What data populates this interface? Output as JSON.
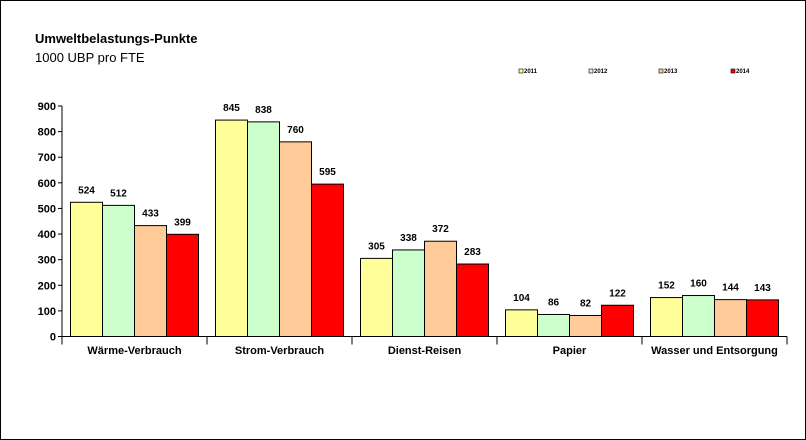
{
  "chart_data": {
    "type": "bar",
    "title": "Umweltbelastungs-Punkte",
    "subtitle": "1000 UBP pro FTE",
    "categories": [
      "Wärme-Verbrauch",
      "Strom-Verbrauch",
      "Dienst-Reisen",
      "Papier",
      "Wasser und Entsorgung"
    ],
    "series": [
      {
        "name": "2011",
        "color": "#ffff99",
        "values": [
          524,
          845,
          305,
          104,
          152
        ]
      },
      {
        "name": "2012",
        "color": "#ccffcc",
        "values": [
          512,
          838,
          338,
          86,
          160
        ]
      },
      {
        "name": "2013",
        "color": "#ffcc99",
        "values": [
          433,
          760,
          372,
          82,
          144
        ]
      },
      {
        "name": "2014",
        "color": "#ff0000",
        "values": [
          399,
          595,
          283,
          122,
          143
        ]
      }
    ],
    "ylim": [
      0,
      900
    ],
    "yticks": [
      "0",
      "100",
      "200",
      "300",
      "400",
      "500",
      "600",
      "700",
      "800",
      "900"
    ],
    "xlabel": "",
    "ylabel": "",
    "grid": false,
    "legend": "top-right",
    "data_labels": true
  }
}
